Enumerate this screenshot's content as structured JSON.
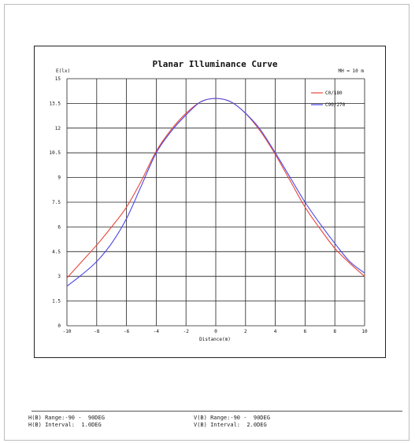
{
  "chart_data": {
    "type": "line",
    "title": "Planar Illuminance Curve",
    "ylabel": "E(lx)",
    "xlabel": "Distance(m)",
    "mh_label": "MH = 10 m",
    "xlim": [
      -10,
      10
    ],
    "ylim": [
      0,
      15
    ],
    "x_ticks": [
      "-10",
      "-8",
      "-6",
      "-4",
      "-2",
      "0",
      "2",
      "4",
      "6",
      "8",
      "10"
    ],
    "y_ticks": [
      "0",
      "1.5",
      "3",
      "4.5",
      "6",
      "7.5",
      "9",
      "10.5",
      "12",
      "13.5",
      "15"
    ],
    "grid": true,
    "legend_position": "top-right",
    "x": [
      -10,
      -9,
      -8,
      -7,
      -6,
      -5,
      -4,
      -3,
      -2,
      -1,
      0,
      1,
      2,
      3,
      4,
      5,
      6,
      7,
      8,
      9,
      10
    ],
    "series": [
      {
        "name": "C0/180",
        "color": "#e8473a",
        "values": [
          2.9,
          3.9,
          4.9,
          6.0,
          7.2,
          8.8,
          10.6,
          11.9,
          12.9,
          13.6,
          13.8,
          13.6,
          12.9,
          11.8,
          10.4,
          8.8,
          7.2,
          5.9,
          4.7,
          3.8,
          3.0
        ]
      },
      {
        "name": "C90/270",
        "color": "#4a45e6",
        "values": [
          2.4,
          3.1,
          3.9,
          5.0,
          6.5,
          8.5,
          10.5,
          11.8,
          12.8,
          13.6,
          13.8,
          13.6,
          12.9,
          11.9,
          10.5,
          9.0,
          7.5,
          6.2,
          5.0,
          3.9,
          3.2
        ]
      }
    ]
  },
  "footer": {
    "h_range": "H(B) Range:-90 -  90DEG",
    "h_interval": "H(B) Interval:  1.0DEG",
    "v_range": "V(B) Range:-90 -  90DEG",
    "v_interval": "V(B) Interval:  2.0DEG"
  }
}
